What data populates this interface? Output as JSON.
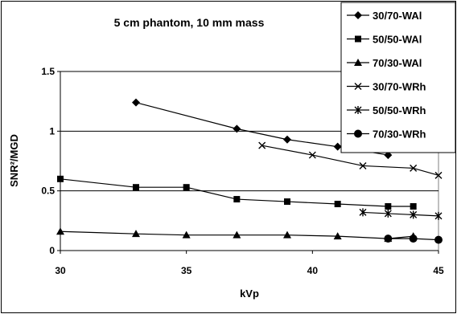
{
  "chart_data": {
    "type": "line",
    "title": "5 cm phantom, 10 mm mass",
    "xlabel": "kVp",
    "ylabel": "SNR²/MGD",
    "xlim": [
      30,
      45
    ],
    "ylim": [
      0,
      1.5
    ],
    "x_ticks": [
      "30",
      "35",
      "40",
      "45"
    ],
    "y_ticks": [
      "0",
      "0.5",
      "1",
      "1.5"
    ],
    "grid": "horizontal",
    "legend_position": "top-right",
    "series": [
      {
        "name": "30/70-WAl",
        "marker": "diamond",
        "x": [
          33,
          37,
          39,
          41,
          43
        ],
        "y": [
          1.24,
          1.02,
          0.93,
          0.87,
          0.8
        ]
      },
      {
        "name": "50/50-WAl",
        "marker": "square",
        "x": [
          30,
          33,
          35,
          37,
          39,
          41,
          43,
          44
        ],
        "y": [
          0.6,
          0.53,
          0.53,
          0.43,
          0.41,
          0.39,
          0.37,
          0.37
        ]
      },
      {
        "name": "70/30-WAl",
        "marker": "triangle",
        "x": [
          30,
          33,
          35,
          37,
          39,
          41,
          43,
          44
        ],
        "y": [
          0.16,
          0.14,
          0.13,
          0.13,
          0.13,
          0.12,
          0.1,
          0.12
        ]
      },
      {
        "name": "30/70-WRh",
        "marker": "x",
        "x": [
          38,
          40,
          42,
          44,
          45
        ],
        "y": [
          0.88,
          0.8,
          0.71,
          0.69,
          0.63
        ]
      },
      {
        "name": "50/50-WRh",
        "marker": "star",
        "x": [
          42,
          43,
          44,
          45
        ],
        "y": [
          0.32,
          0.31,
          0.3,
          0.29
        ]
      },
      {
        "name": "70/30-WRh",
        "marker": "circle",
        "x": [
          43,
          44,
          45
        ],
        "y": [
          0.1,
          0.1,
          0.09
        ]
      }
    ]
  }
}
